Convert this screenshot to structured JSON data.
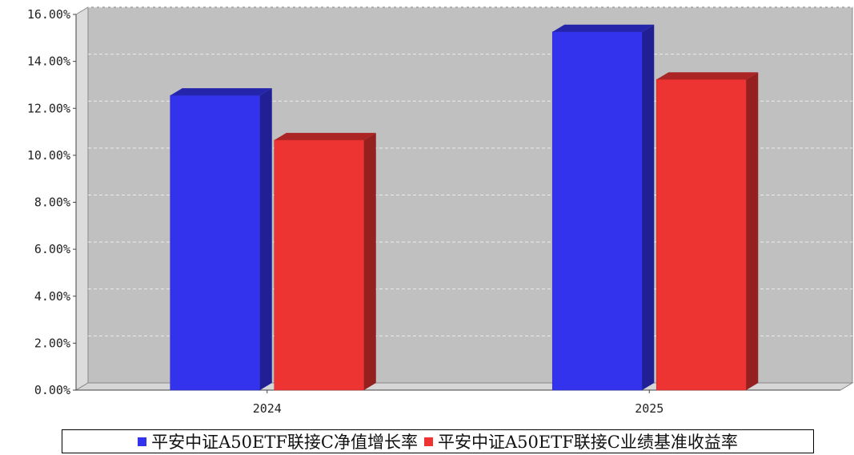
{
  "chart_data": {
    "type": "bar",
    "categories": [
      "2024",
      "2025"
    ],
    "series": [
      {
        "name": "平安中证A50ETF联接C净值增长率",
        "values": [
          12.55,
          15.26
        ],
        "color": "#3333ee"
      },
      {
        "name": "平安中证A50ETF联接C业绩基准收益率",
        "values": [
          10.65,
          13.23
        ],
        "color": "#ee3333"
      }
    ],
    "y_ticks": [
      "0.00%",
      "2.00%",
      "4.00%",
      "6.00%",
      "8.00%",
      "10.00%",
      "12.00%",
      "14.00%",
      "16.00%"
    ],
    "ylim": [
      0,
      16
    ],
    "grid": true,
    "legend_position": "bottom",
    "style": "3d",
    "plot_background": "#c0c0c0"
  }
}
